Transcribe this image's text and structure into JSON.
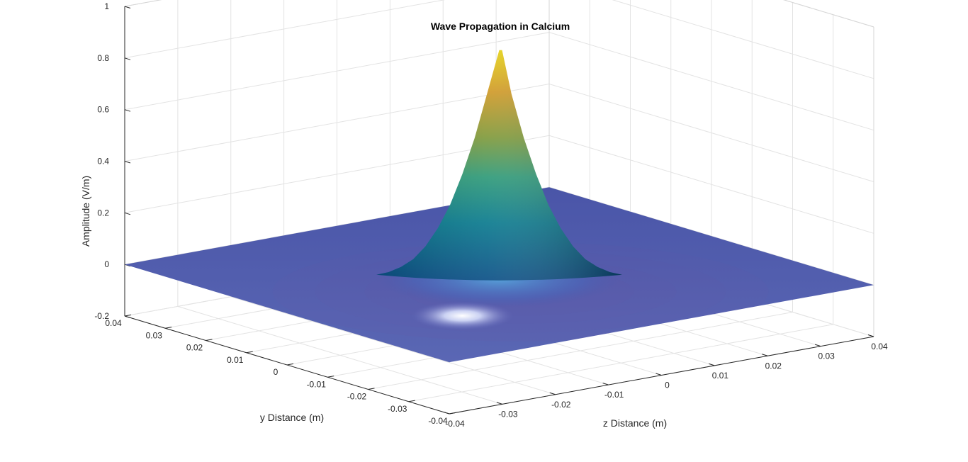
{
  "chart_data": {
    "type": "surface",
    "title": "Wave Propagation in Calcium",
    "xlabel": "z Distance (m)",
    "ylabel": "y Distance (m)",
    "zlabel": "Amplitude (V/m)",
    "xlim": [
      -0.04,
      0.04
    ],
    "ylim": [
      -0.04,
      0.04
    ],
    "zlim": [
      -0.2,
      1
    ],
    "xticks": [
      -0.04,
      -0.03,
      -0.02,
      -0.01,
      0,
      0.01,
      0.02,
      0.03,
      0.04
    ],
    "xtick_labels": [
      "-0.04",
      "-0.03",
      "-0.02",
      "-0.01",
      "0",
      "0.01",
      "0.02",
      "0.03",
      "0.04"
    ],
    "yticks": [
      0.04,
      0.03,
      0.02,
      0.01,
      0,
      -0.01,
      -0.02,
      -0.03,
      -0.04
    ],
    "ytick_labels": [
      "0.04",
      "0.03",
      "0.02",
      "0.01",
      "0",
      "-0.01",
      "-0.02",
      "-0.03",
      "-0.04"
    ],
    "zticks": [
      -0.2,
      0,
      0.2,
      0.4,
      0.6,
      0.8,
      1
    ],
    "ztick_labels": [
      "-0.2",
      "0",
      "0.2",
      "0.4",
      "0.6",
      "0.8",
      "1"
    ],
    "grid": true,
    "peak": {
      "z": 0,
      "y": 0,
      "amplitude": 0.87
    },
    "base_level": 0,
    "profile": {
      "radius": [
        0,
        0.002,
        0.004,
        0.006,
        0.008,
        0.01,
        0.012,
        0.014,
        0.016,
        0.018,
        0.02
      ],
      "amplitude": [
        0.87,
        0.7,
        0.53,
        0.39,
        0.27,
        0.18,
        0.11,
        0.06,
        0.03,
        0.01,
        0
      ]
    },
    "colors": {
      "low": "#3d26a8",
      "mid": "#12b2b2",
      "high": "#f9fb0e",
      "floor": "#5060b0"
    }
  }
}
